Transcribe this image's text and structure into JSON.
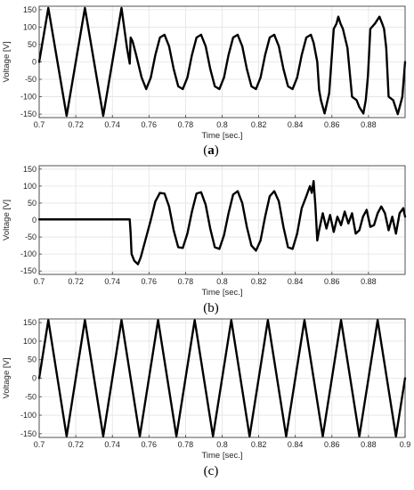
{
  "figure": {
    "caption_open": "(",
    "caption_close": ")"
  },
  "chart_data": [
    {
      "type": "line",
      "caption": "a",
      "caption_bold": true,
      "xlabel": "Time [sec.]",
      "ylabel": "Voltage [V]",
      "xlim": [
        0.7,
        0.9
      ],
      "ylim": [
        -160,
        160
      ],
      "xticks": [
        "0.7",
        "0.72",
        "0.74",
        "0.76",
        "0.78",
        "0.8",
        "0.82",
        "0.84",
        "0.86",
        "0.88"
      ],
      "yticks": [
        "150",
        "100",
        "50",
        "0",
        "-50",
        "-100",
        "-150"
      ],
      "grid": true,
      "line_color": "#000000",
      "series": [
        {
          "x": [
            0.7,
            0.705,
            0.71,
            0.715,
            0.72,
            0.725,
            0.73,
            0.735,
            0.74,
            0.745,
            0.748,
            0.7495,
            0.75,
            0.751,
            0.753,
            0.756,
            0.7585,
            0.761,
            0.7635,
            0.766,
            0.7685,
            0.771,
            0.7735,
            0.776,
            0.7785,
            0.781,
            0.7835,
            0.786,
            0.7885,
            0.791,
            0.7935,
            0.796,
            0.7985,
            0.801,
            0.8035,
            0.806,
            0.8085,
            0.811,
            0.8135,
            0.816,
            0.8185,
            0.821,
            0.8235,
            0.826,
            0.8285,
            0.831,
            0.8335,
            0.836,
            0.8385,
            0.841,
            0.8435,
            0.846,
            0.8485,
            0.85,
            0.852,
            0.853,
            0.854,
            0.856,
            0.8585,
            0.861,
            0.8625,
            0.8635,
            0.8647,
            0.866,
            0.8685,
            0.871,
            0.8735,
            0.875,
            0.8772,
            0.8785,
            0.8797,
            0.881,
            0.8835,
            0.886,
            0.8875,
            0.8885,
            0.8897,
            0.891,
            0.8935,
            0.896,
            0.8985,
            0.9
          ],
          "y": [
            0,
            155,
            0,
            -155,
            0,
            155,
            0,
            -155,
            0,
            155,
            40,
            -5,
            70,
            60,
            20,
            -45,
            -78,
            -45,
            20,
            70,
            78,
            45,
            -20,
            -70,
            -78,
            -45,
            20,
            70,
            78,
            45,
            -20,
            -70,
            -78,
            -45,
            20,
            70,
            78,
            45,
            -20,
            -70,
            -78,
            -45,
            20,
            70,
            78,
            45,
            -20,
            -70,
            -78,
            -45,
            20,
            70,
            78,
            55,
            0,
            -80,
            -110,
            -148,
            -90,
            95,
            110,
            130,
            110,
            95,
            40,
            -100,
            -110,
            -130,
            -148,
            -110,
            -40,
            95,
            110,
            130,
            110,
            95,
            40,
            -100,
            -110,
            -150,
            -100,
            0
          ]
        }
      ]
    },
    {
      "type": "line",
      "caption": "b",
      "caption_bold": false,
      "xlabel": "Time [sec.]",
      "ylabel": "Voltage [V]",
      "xlim": [
        0.7,
        0.9
      ],
      "ylim": [
        -160,
        160
      ],
      "xticks": [
        "0.7",
        "0.72",
        "0.74",
        "0.76",
        "0.78",
        "0.8",
        "0.82",
        "0.84",
        "0.86",
        "0.88"
      ],
      "yticks": [
        "150",
        "100",
        "50",
        "0",
        "-50",
        "-100",
        "-150"
      ],
      "grid": true,
      "line_color": "#000000",
      "series": [
        {
          "x": [
            0.7,
            0.72,
            0.74,
            0.7495,
            0.75,
            0.7505,
            0.752,
            0.754,
            0.7555,
            0.758,
            0.761,
            0.7635,
            0.766,
            0.7685,
            0.771,
            0.7735,
            0.776,
            0.7785,
            0.781,
            0.7835,
            0.786,
            0.7885,
            0.791,
            0.7935,
            0.796,
            0.7985,
            0.801,
            0.8035,
            0.806,
            0.8085,
            0.811,
            0.8135,
            0.816,
            0.8185,
            0.821,
            0.8235,
            0.826,
            0.8285,
            0.831,
            0.8335,
            0.836,
            0.8385,
            0.841,
            0.8435,
            0.846,
            0.848,
            0.849,
            0.85,
            0.851,
            0.852,
            0.853,
            0.855,
            0.857,
            0.859,
            0.861,
            0.863,
            0.865,
            0.867,
            0.869,
            0.871,
            0.873,
            0.875,
            0.877,
            0.879,
            0.881,
            0.883,
            0.885,
            0.887,
            0.889,
            0.891,
            0.893,
            0.895,
            0.897,
            0.899,
            0.9
          ],
          "y": [
            2,
            2,
            2,
            2,
            -40,
            -100,
            -120,
            -130,
            -110,
            -60,
            0,
            55,
            80,
            78,
            40,
            -30,
            -80,
            -82,
            -40,
            25,
            78,
            82,
            45,
            -25,
            -80,
            -85,
            -45,
            20,
            75,
            85,
            50,
            -20,
            -75,
            -90,
            -60,
            10,
            70,
            85,
            55,
            -20,
            -80,
            -85,
            -40,
            35,
            70,
            100,
            80,
            115,
            40,
            -60,
            -30,
            20,
            -25,
            15,
            -35,
            10,
            -15,
            25,
            -10,
            20,
            -40,
            -30,
            10,
            30,
            -20,
            -15,
            20,
            40,
            20,
            -30,
            10,
            -40,
            20,
            35,
            10
          ]
        }
      ]
    },
    {
      "type": "line",
      "caption": "c",
      "caption_bold": false,
      "xlabel": "Time [sec.]",
      "ylabel": "Voltage [V]",
      "xlim": [
        0.7,
        0.9
      ],
      "ylim": [
        -160,
        160
      ],
      "xticks": [
        "0.7",
        "0.72",
        "0.74",
        "0.76",
        "0.78",
        "0.8",
        "0.82",
        "0.84",
        "0.86",
        "0.88",
        "0.9"
      ],
      "yticks": [
        "150",
        "100",
        "50",
        "0",
        "-50",
        "-100",
        "-150"
      ],
      "grid": true,
      "line_color": "#000000",
      "series": [
        {
          "x": [
            0.7,
            0.705,
            0.71,
            0.715,
            0.72,
            0.725,
            0.73,
            0.735,
            0.74,
            0.745,
            0.75,
            0.755,
            0.76,
            0.765,
            0.77,
            0.775,
            0.78,
            0.785,
            0.79,
            0.795,
            0.8,
            0.805,
            0.81,
            0.815,
            0.82,
            0.825,
            0.83,
            0.835,
            0.84,
            0.845,
            0.85,
            0.855,
            0.86,
            0.865,
            0.87,
            0.875,
            0.88,
            0.885,
            0.89,
            0.895,
            0.9
          ],
          "y": [
            0,
            157,
            0,
            -157,
            0,
            157,
            0,
            -157,
            0,
            157,
            0,
            -157,
            0,
            157,
            0,
            -157,
            0,
            157,
            0,
            -157,
            0,
            157,
            0,
            -157,
            0,
            157,
            0,
            -157,
            0,
            157,
            0,
            -157,
            0,
            157,
            0,
            -157,
            0,
            157,
            0,
            -157,
            0
          ]
        }
      ]
    }
  ]
}
